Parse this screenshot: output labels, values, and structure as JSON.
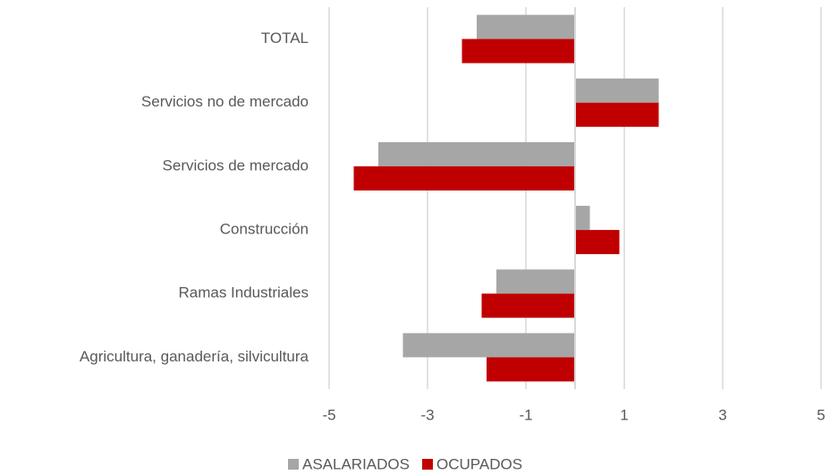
{
  "chart_data": {
    "type": "hbar",
    "categories": [
      "TOTAL",
      "Servicios no de mercado",
      "Servicios de mercado",
      "Construcción",
      "Ramas Industriales",
      "Agricultura, ganadería, silvicultura"
    ],
    "series": [
      {
        "name": "ASALARIADOS",
        "color": "#a6a6a6",
        "values": [
          -2.0,
          1.7,
          -4.0,
          0.3,
          -1.6,
          -3.5
        ]
      },
      {
        "name": "OCUPADOS",
        "color": "#c00000",
        "values": [
          -2.3,
          1.7,
          -4.5,
          0.9,
          -1.9,
          -1.8
        ]
      }
    ],
    "xlim": [
      -5,
      5
    ],
    "xticks": [
      -5,
      -3,
      -1,
      1,
      3,
      5
    ],
    "grid": true,
    "legend": "bottom"
  }
}
